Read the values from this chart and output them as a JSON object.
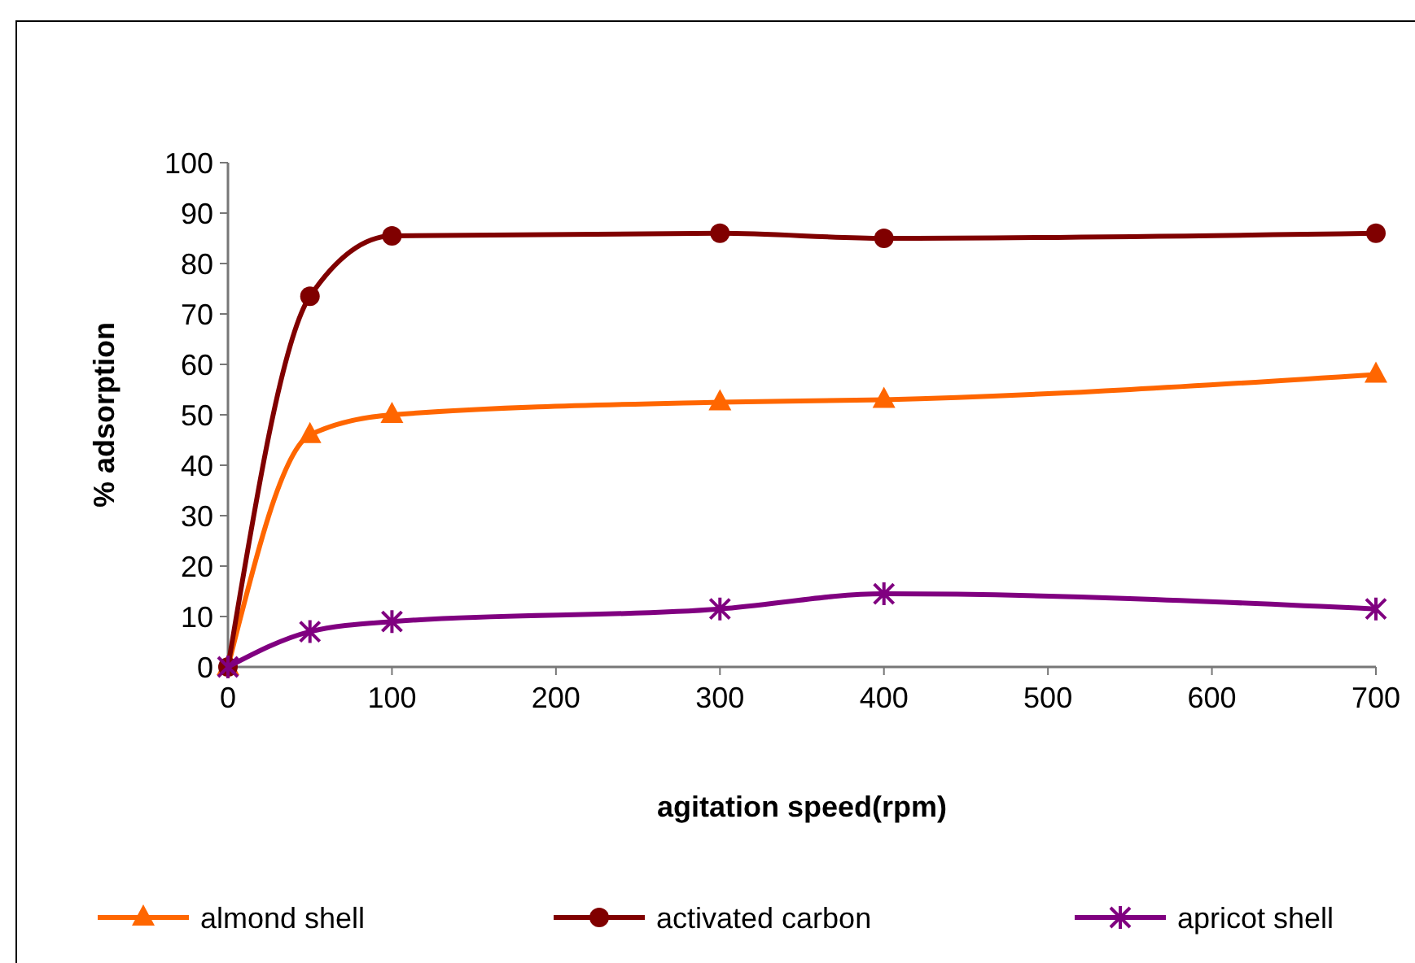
{
  "chart_data": {
    "type": "line",
    "xlabel": "agitation speed(rpm)",
    "ylabel": "% adsorption",
    "x": [
      0,
      50,
      100,
      300,
      400,
      700
    ],
    "series": [
      {
        "name": "almond shell",
        "color": "#ff6600",
        "marker": "triangle",
        "values": [
          0,
          46,
          50,
          52.5,
          53,
          58
        ]
      },
      {
        "name": "activated carbon",
        "color": "#800000",
        "marker": "circle",
        "values": [
          0,
          73.5,
          85.5,
          86,
          85,
          86
        ]
      },
      {
        "name": "apricot shell",
        "color": "#800080",
        "marker": "cross",
        "values": [
          0,
          7,
          9,
          11.5,
          14.5,
          11.5
        ]
      }
    ],
    "xlim": [
      0,
      700
    ],
    "xticks": [
      0,
      100,
      200,
      300,
      400,
      500,
      600,
      700
    ],
    "ylim": [
      0,
      100
    ],
    "yticks": [
      0,
      10,
      20,
      30,
      40,
      50,
      60,
      70,
      80,
      90,
      100
    ],
    "grid": false,
    "legend": "bottom",
    "line_style": "solid"
  }
}
